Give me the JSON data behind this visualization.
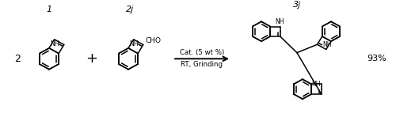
{
  "bg_color": "#ffffff",
  "text_color": "#000000",
  "arrow_text1": "Cat. (5 wt %)",
  "arrow_text2": "RT, Grinding",
  "yield": "93%",
  "label1": "1",
  "label2": "2j",
  "label3": "3j",
  "coeff": "2",
  "line_width": 1.1,
  "fig_width": 5.0,
  "fig_height": 1.53,
  "dpi": 100
}
